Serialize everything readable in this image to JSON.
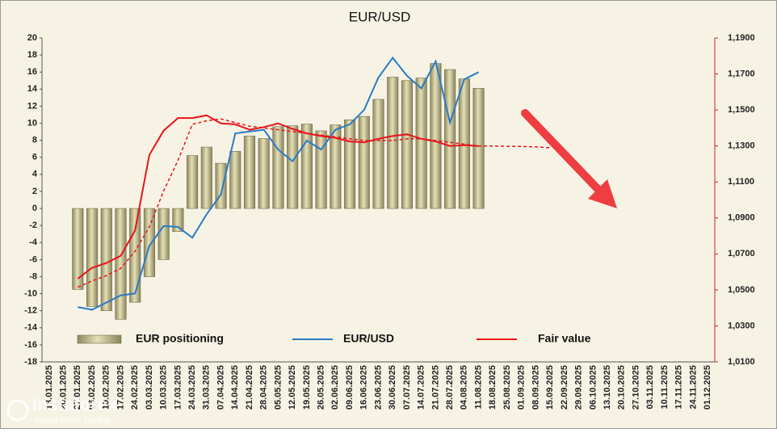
{
  "chart_data": {
    "type": "bar_line",
    "title": "EUR/USD",
    "categories": [
      "13.01.2025",
      "20.01.2025",
      "27.01.2025",
      "03.02.2025",
      "10.02.2025",
      "17.02.2025",
      "24.02.2025",
      "03.03.2025",
      "10.03.2025",
      "17.03.2025",
      "24.03.2025",
      "31.03.2025",
      "07.04.2025",
      "14.04.2025",
      "21.04.2025",
      "28.04.2025",
      "05.05.2025",
      "12.05.2025",
      "19.05.2025",
      "26.05.2025",
      "02.06.2025",
      "09.06.2025",
      "16.06.2025",
      "23.06.2025",
      "30.06.2025",
      "07.07.2025",
      "14.07.2025",
      "21.07.2025",
      "28.07.2025",
      "04.08.2025",
      "11.08.2025",
      "18.08.2025",
      "25.08.2025",
      "01.09.2025",
      "08.09.2025",
      "15.09.2025",
      "22.09.2025",
      "29.09.2025",
      "06.10.2025",
      "13.10.2025",
      "20.10.2025",
      "27.10.2025",
      "03.11.2025",
      "10.11.2025",
      "17.11.2025",
      "24.11.2025",
      "01.12.2025"
    ],
    "series": [
      {
        "name": "EUR positioning",
        "kind": "bar",
        "color": "#cdc697",
        "axis": "y",
        "values": [
          null,
          null,
          -9.5,
          -11.5,
          -12,
          -13,
          -11,
          -8,
          -6,
          -2.7,
          6.2,
          7.2,
          5.3,
          6.7,
          8.5,
          8.2,
          9.6,
          9.7,
          9.9,
          9.1,
          9.8,
          10.4,
          10.8,
          12.8,
          15.4,
          15,
          15.3,
          17,
          16.3,
          15.2,
          14.1,
          null,
          null,
          null,
          null,
          null,
          null,
          null,
          null,
          null,
          null,
          null,
          null,
          null,
          null,
          null,
          null
        ]
      },
      {
        "name": "EUR/USD",
        "kind": "line",
        "color": "#2a7bc4",
        "axis": "y2",
        "values": [
          null,
          null,
          1.0405,
          1.039,
          1.043,
          1.047,
          1.048,
          1.0745,
          1.0855,
          1.085,
          1.079,
          1.092,
          1.103,
          1.137,
          1.138,
          1.139,
          1.128,
          1.1215,
          1.133,
          1.128,
          1.139,
          1.142,
          1.15,
          1.168,
          1.179,
          1.169,
          1.162,
          1.177,
          1.143,
          1.167,
          1.171,
          null,
          null,
          null,
          null,
          null,
          null,
          null,
          null,
          null,
          null,
          null,
          null,
          null,
          null,
          null,
          null
        ]
      },
      {
        "name": "Fair value",
        "kind": "line",
        "color": "#e8141b",
        "axis": "y2",
        "values": [
          null,
          null,
          1.0563,
          1.0623,
          1.065,
          1.069,
          1.083,
          1.125,
          1.1385,
          1.1455,
          1.1455,
          1.147,
          1.1425,
          1.142,
          1.139,
          1.1405,
          1.1425,
          1.1395,
          1.137,
          1.1355,
          1.1345,
          1.1325,
          1.132,
          1.134,
          1.1355,
          1.1365,
          1.134,
          1.1325,
          1.13,
          1.1305,
          1.13,
          null,
          null,
          null,
          null,
          null,
          null,
          null,
          null,
          null,
          null,
          null,
          null,
          null,
          null,
          null,
          null
        ]
      },
      {
        "kind": "dashed",
        "color": "#e8141b",
        "axis": "y2",
        "values": [
          null,
          null,
          1.0515,
          1.055,
          1.058,
          1.062,
          1.0715,
          1.085,
          1.105,
          1.122,
          1.142,
          1.144,
          1.145,
          1.143,
          1.141,
          1.14,
          1.139,
          1.138,
          1.137,
          1.136,
          1.135,
          1.134,
          1.133,
          1.133,
          1.133,
          1.134,
          1.134,
          1.133,
          1.132,
          1.131,
          1.13,
          1.13,
          1.1298,
          1.1297,
          1.1295,
          1.129,
          null,
          null,
          null,
          null,
          null,
          null,
          null,
          null,
          null,
          null,
          null
        ]
      }
    ],
    "ylim": [
      -18,
      20
    ],
    "yticks": [
      -18,
      -16,
      -14,
      -12,
      -10,
      -8,
      -6,
      -4,
      -2,
      0,
      2,
      4,
      6,
      8,
      10,
      12,
      14,
      16,
      18,
      20
    ],
    "y2lim": [
      1.01,
      1.19
    ],
    "y2ticks": [
      {
        "value": 1.01,
        "label": "1,0100"
      },
      {
        "value": 1.03,
        "label": "1,0300"
      },
      {
        "value": 1.05,
        "label": "1,0500"
      },
      {
        "value": 1.07,
        "label": "1,0700"
      },
      {
        "value": 1.09,
        "label": "1,0900"
      },
      {
        "value": 1.11,
        "label": "1,1100"
      },
      {
        "value": 1.13,
        "label": "1,1300"
      },
      {
        "value": 1.15,
        "label": "1,1500"
      },
      {
        "value": 1.17,
        "label": "1,1700"
      },
      {
        "value": 1.19,
        "label": "1,1900"
      }
    ]
  },
  "watermark": {
    "brand": "instaforex",
    "tagline": "Instant Forex Trading"
  }
}
